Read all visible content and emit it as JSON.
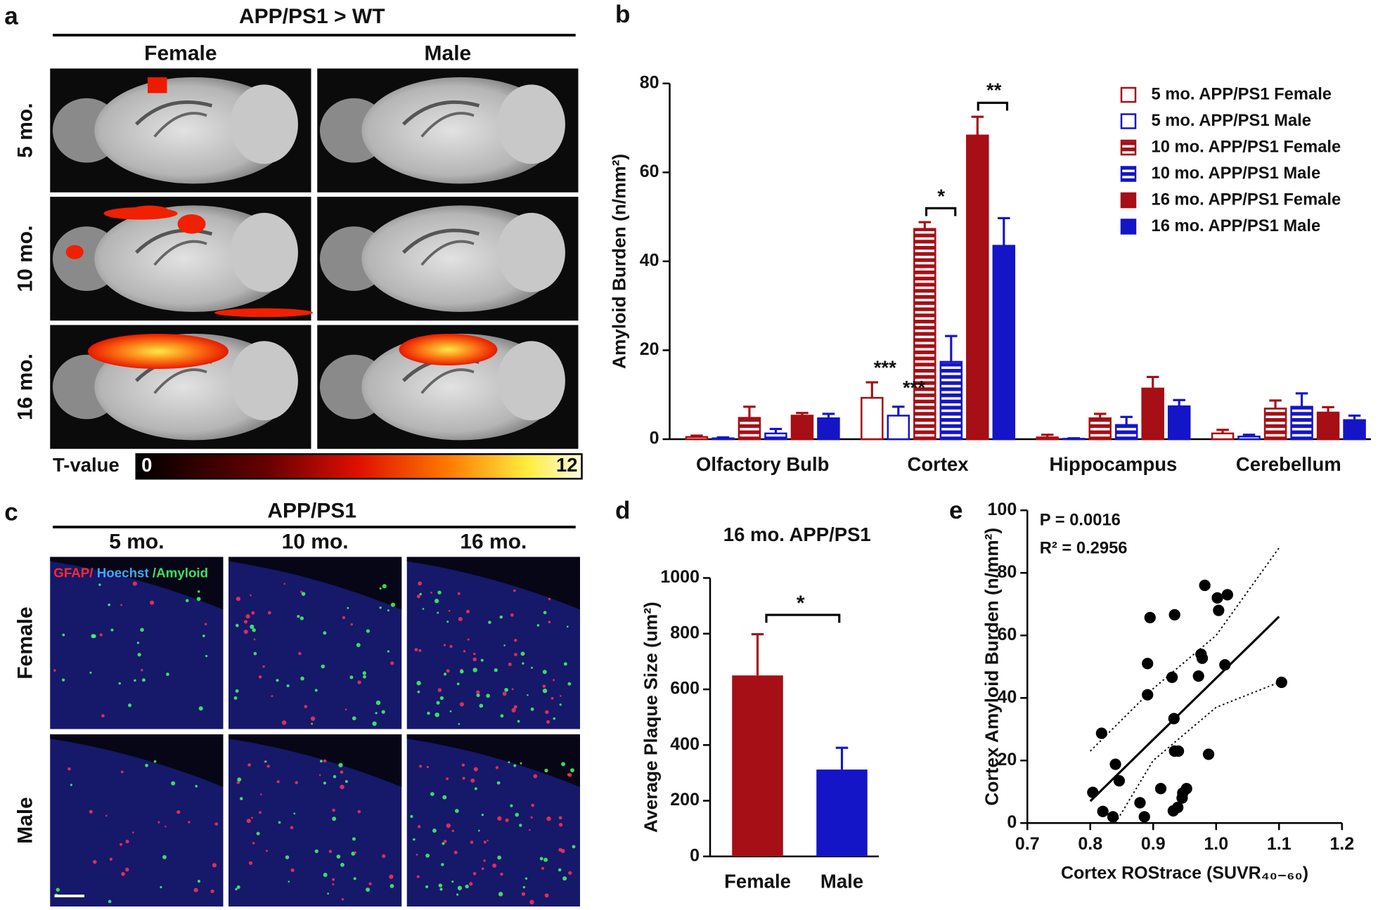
{
  "panels": {
    "a": {
      "label": "a",
      "title": "APP/PS1 > WT",
      "columns": [
        "Female",
        "Male"
      ],
      "rows": [
        "5 mo.",
        "10 mo.",
        "16 mo."
      ],
      "colorbar": {
        "label": "T-value",
        "range": [
          0,
          12
        ]
      }
    },
    "c": {
      "label": "c",
      "title": "APP/PS1",
      "columns": [
        "5 mo.",
        "10 mo.",
        "16 mo."
      ],
      "rows": [
        "Female",
        "Male"
      ],
      "stain_legend": [
        "GFAP/",
        " Hoechst",
        " /Amyloid"
      ]
    }
  },
  "chart_data": [
    {
      "type": "bar",
      "panel_label": "b",
      "y_label": "Amyloid Burden (n/mm²)",
      "categories": [
        "Olfactory Bulb",
        "Cortex",
        "Hippocampus",
        "Cerebellum"
      ],
      "ylim": [
        0,
        80
      ],
      "yticks": [
        0,
        20,
        40,
        60,
        80
      ],
      "series": [
        {
          "name": "5 mo. APP/PS1 Female",
          "color": "#a50f15",
          "fill": "open",
          "values": [
            0.5,
            9.3,
            0.4,
            1.3
          ],
          "errors": [
            0.3,
            3.5,
            0.6,
            0.8
          ]
        },
        {
          "name": "5 mo. APP/PS1 Male",
          "color": "#1515c8",
          "fill": "open",
          "values": [
            0.2,
            5.3,
            0.1,
            0.6
          ],
          "errors": [
            0.2,
            2.0,
            0.1,
            0.4
          ]
        },
        {
          "name": "10 mo. APP/PS1 Female",
          "color": "#a50f15",
          "fill": "striped",
          "values": [
            4.8,
            47.3,
            4.7,
            6.9
          ],
          "errors": [
            2.5,
            1.5,
            1.0,
            1.8
          ]
        },
        {
          "name": "10 mo. APP/PS1 Male",
          "color": "#1515c8",
          "fill": "striped",
          "values": [
            1.3,
            17.4,
            3.2,
            7.3
          ],
          "errors": [
            1.0,
            5.8,
            1.8,
            3.0
          ]
        },
        {
          "name": "16 mo. APP/PS1 Female",
          "color": "#a50f15",
          "fill": "solid",
          "values": [
            5.3,
            68.3,
            11.4,
            6.0
          ],
          "errors": [
            0.6,
            4.2,
            2.6,
            1.2
          ]
        },
        {
          "name": "16 mo. APP/PS1 Male",
          "color": "#1515c8",
          "fill": "solid",
          "values": [
            4.7,
            43.5,
            7.4,
            4.3
          ],
          "errors": [
            1.0,
            6.2,
            1.4,
            1.0
          ]
        }
      ],
      "annotations": [
        "***",
        "***",
        "*",
        "**"
      ]
    },
    {
      "type": "bar",
      "panel_label": "d",
      "title": "16 mo. APP/PS1",
      "y_label": "Average Plaque Size (um²)",
      "categories": [
        "Female",
        "Male"
      ],
      "values": [
        650,
        312
      ],
      "errors": [
        148,
        78
      ],
      "colors": [
        "#a50f15",
        "#1515c8"
      ],
      "ylim": [
        0,
        1000
      ],
      "yticks": [
        0,
        200,
        400,
        600,
        800,
        1000
      ],
      "annotations": [
        "*"
      ]
    },
    {
      "type": "scatter",
      "panel_label": "e",
      "x_label": "Cortex ROStrace (SUVR₄₀₋₆₀)",
      "y_label": "Cortex Amyloid Burden (n/mm²)",
      "x": [
        0.804,
        0.818,
        0.82,
        0.836,
        0.84,
        0.846,
        0.879,
        0.886,
        0.891,
        0.891,
        0.895,
        0.912,
        0.93,
        0.933,
        0.934,
        0.934,
        0.94,
        0.939,
        0.946,
        0.947,
        0.953,
        0.932,
        0.976,
        0.978,
        0.972,
        0.982,
        0.988,
        1.002,
        1.004,
        1.018,
        1.014,
        1.104
      ],
      "y": [
        9.8,
        28.7,
        3.7,
        2,
        18.8,
        13.5,
        6.5,
        2,
        41,
        51,
        65.7,
        11,
        46.6,
        33.4,
        66.6,
        23,
        23,
        5,
        8,
        9.6,
        11,
        3.9,
        54,
        52.7,
        47,
        76,
        22,
        72,
        68,
        73,
        50.6,
        45
      ],
      "xlim": [
        0.7,
        1.2
      ],
      "xticks": [
        0.7,
        0.8,
        0.9,
        {
          "value": 1,
          "label": "1.0"
        },
        1.1,
        1.2
      ],
      "ylim": [
        0,
        100
      ],
      "yticks": [
        0,
        20,
        40,
        60,
        80,
        100
      ],
      "fit": {
        "x": [
          0.8,
          1.1
        ],
        "y": [
          7,
          66
        ]
      },
      "ci_upper": {
        "x": [
          0.8,
          0.9,
          1.0,
          1.1
        ],
        "y": [
          23,
          43,
          60,
          88
        ]
      },
      "ci_lower": {
        "x": [
          0.84,
          0.9,
          1.0,
          1.1
        ],
        "y": [
          0,
          20,
          37,
          45
        ]
      },
      "annotations": [
        "P = 0.0016",
        "R² = 0.2956"
      ]
    }
  ]
}
